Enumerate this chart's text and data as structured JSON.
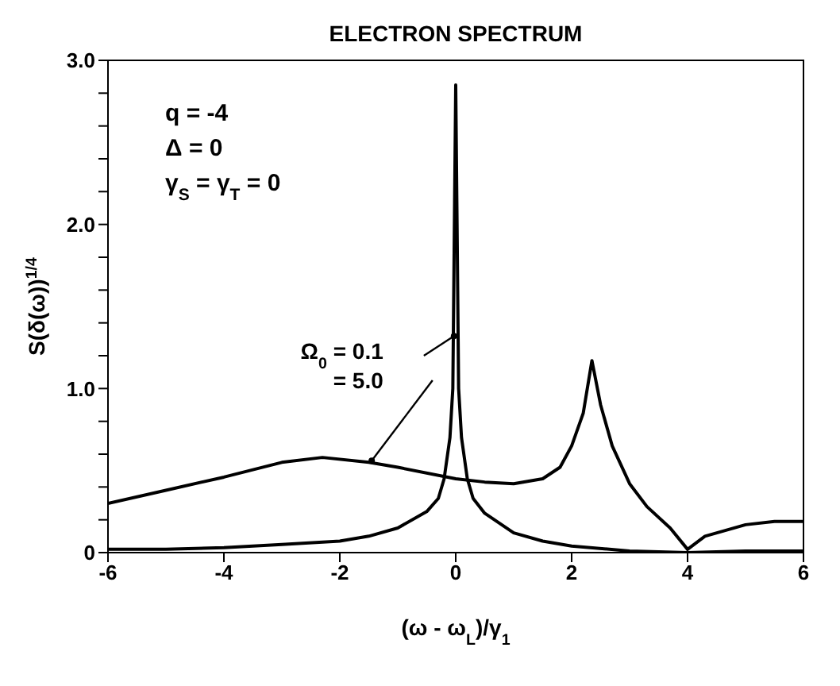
{
  "chart_data": {
    "type": "line",
    "title": "ELECTRON SPECTRUM",
    "xlabel": "(ω - ω$_{L}$)/γ$_{1}$",
    "ylabel": "S(δ(ω))$^{1/4}$",
    "annotations": [
      "q = -4",
      "Δ = 0",
      "γ$_{S}$ = γ$_{T}$ = 0"
    ],
    "xlim": [
      -6,
      6
    ],
    "xticks": [
      -6,
      -4,
      -2,
      0,
      2,
      4,
      6
    ],
    "ylim": [
      0,
      3
    ],
    "yticks": [
      {
        "value": 0,
        "label": "0"
      },
      {
        "value": 0.2,
        "label": null
      },
      {
        "value": 0.4,
        "label": null
      },
      {
        "value": 0.6,
        "label": null
      },
      {
        "value": 0.8,
        "label": null
      },
      {
        "value": 1,
        "label": "1.0"
      },
      {
        "value": 1.2,
        "label": null
      },
      {
        "value": 1.4,
        "label": null
      },
      {
        "value": 1.6,
        "label": null
      },
      {
        "value": 1.8,
        "label": null
      },
      {
        "value": 2,
        "label": "2.0"
      },
      {
        "value": 2.2,
        "label": null
      },
      {
        "value": 2.4,
        "label": null
      },
      {
        "value": 2.6,
        "label": null
      },
      {
        "value": 2.8,
        "label": null
      },
      {
        "value": 3,
        "label": "3.0"
      }
    ],
    "grid": false,
    "legend": "center",
    "marker": "none",
    "line_style": "solid",
    "series": [
      {
        "name": "Ω$_{0}$ = 0.1",
        "color": "#000000",
        "x": [
          -6,
          -5,
          -4,
          -3,
          -2,
          -1.5,
          -1,
          -0.5,
          -0.3,
          -0.2,
          -0.1,
          -0.05,
          0,
          0.05,
          0.1,
          0.2,
          0.3,
          0.5,
          1,
          1.5,
          2,
          3,
          4,
          5,
          6
        ],
        "values": [
          0.02,
          0.02,
          0.03,
          0.05,
          0.07,
          0.1,
          0.15,
          0.25,
          0.33,
          0.45,
          0.7,
          1.0,
          2.85,
          1.0,
          0.7,
          0.45,
          0.33,
          0.24,
          0.12,
          0.07,
          0.04,
          0.01,
          0.0,
          0.01,
          0.01
        ]
      },
      {
        "name": "= 5.0",
        "color": "#000000",
        "x": [
          -6,
          -5,
          -4,
          -3,
          -2.3,
          -1.5,
          -1,
          0,
          0.5,
          1,
          1.5,
          1.8,
          2,
          2.2,
          2.35,
          2.5,
          2.7,
          3,
          3.3,
          3.7,
          4,
          4.3,
          5,
          5.5,
          6
        ],
        "values": [
          0.3,
          0.38,
          0.46,
          0.55,
          0.58,
          0.55,
          0.52,
          0.45,
          0.43,
          0.42,
          0.45,
          0.52,
          0.65,
          0.85,
          1.17,
          0.9,
          0.65,
          0.42,
          0.28,
          0.15,
          0.02,
          0.1,
          0.17,
          0.19,
          0.19
        ]
      }
    ]
  }
}
